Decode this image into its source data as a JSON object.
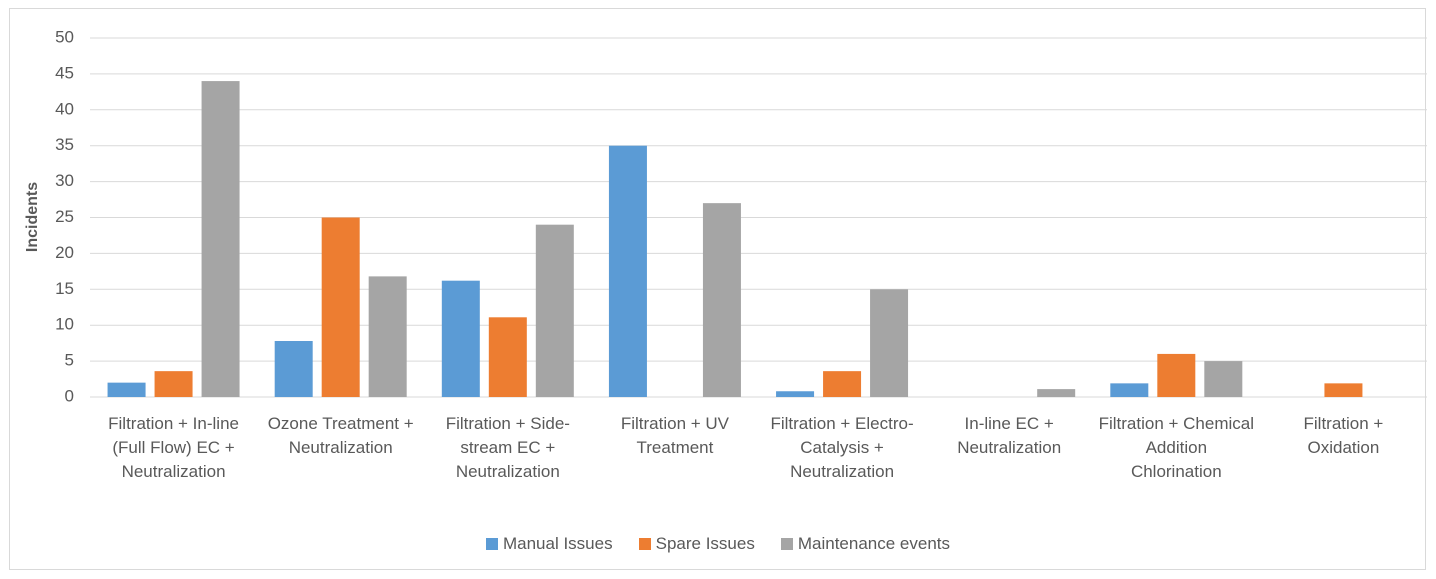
{
  "chart_data": {
    "type": "bar",
    "y_label": "Incidents",
    "categories": [
      "Filtration + In-line (Full Flow) EC + Neutralization",
      "Ozone Treatment + Neutralization",
      "Filtration + Side-stream EC + Neutralization",
      "Filtration + UV Treatment",
      "Filtration + Electro-Catalysis + Neutralization",
      "In-line EC + Neutralization",
      "Filtration + Chemical Addition Chlorination",
      "Filtration + Oxidation"
    ],
    "series": [
      {
        "name": "Manual Issues",
        "color": "#5b9bd5",
        "values": [
          2,
          7.8,
          16.2,
          35,
          0.8,
          0,
          1.9,
          0
        ]
      },
      {
        "name": "Spare Issues",
        "color": "#ed7d31",
        "values": [
          3.6,
          25,
          11.1,
          0,
          3.6,
          0,
          6,
          1.9
        ]
      },
      {
        "name": "Maintenance events",
        "color": "#a5a5a5",
        "values": [
          44,
          16.8,
          24,
          27,
          15,
          1.1,
          5,
          0
        ]
      }
    ],
    "ylim": [
      0,
      50
    ],
    "yticks": [
      0,
      5,
      10,
      15,
      20,
      25,
      30,
      35,
      40,
      45,
      50
    ],
    "grid": true,
    "legend": "bottom"
  }
}
